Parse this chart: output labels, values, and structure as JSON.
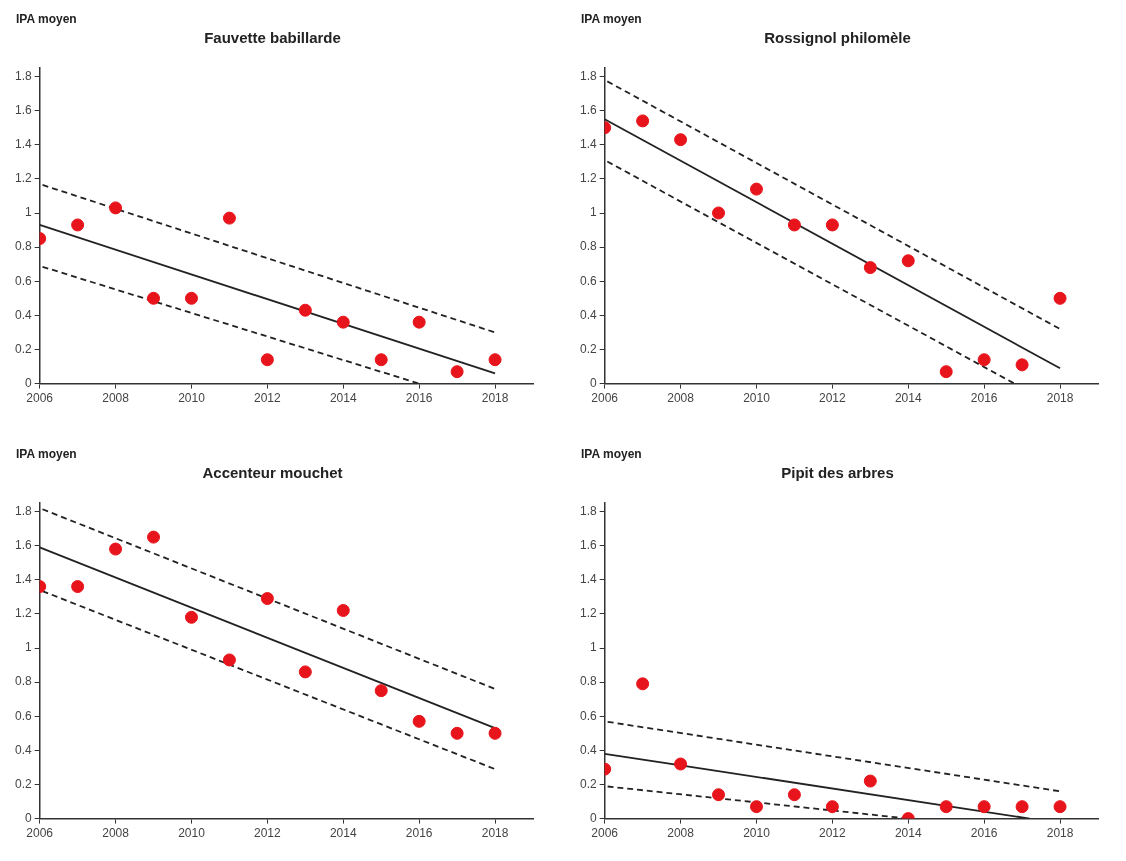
{
  "chart_data": [
    {
      "type": "scatter",
      "title": "Fauvette babillarde",
      "ylabel": "IPA moyen",
      "xlim": [
        2006,
        2019
      ],
      "ylim": [
        0,
        1.85
      ],
      "xticks": [
        2006,
        2008,
        2010,
        2012,
        2014,
        2016,
        2018
      ],
      "yticks": [
        0,
        0.2,
        0.4,
        0.6,
        0.8,
        1,
        1.2,
        1.4,
        1.6,
        1.8
      ],
      "grid": false,
      "legend": false,
      "series": [
        {
          "color": "#e8141b",
          "marker": "circle",
          "x": [
            2006,
            2007,
            2008,
            2009,
            2010,
            2011,
            2012,
            2013,
            2014,
            2015,
            2016,
            2017,
            2018
          ],
          "values": [
            0.85,
            0.93,
            1.03,
            0.5,
            0.5,
            0.97,
            0.14,
            0.43,
            0.36,
            0.14,
            0.36,
            0.07,
            0.14
          ]
        },
        {
          "type": "line",
          "color": "#222222",
          "line_style": "solid",
          "x": [
            2006,
            2018
          ],
          "values": [
            0.93,
            0.06
          ]
        },
        {
          "type": "line",
          "color": "#222222",
          "line_style": "dashed",
          "x": [
            2006,
            2018
          ],
          "values": [
            1.17,
            0.3
          ]
        },
        {
          "type": "line",
          "color": "#222222",
          "line_style": "dashed",
          "x": [
            2006,
            2016
          ],
          "values": [
            0.69,
            0
          ]
        }
      ]
    },
    {
      "type": "scatter",
      "title": "Rossignol philomèle",
      "ylabel": "IPA moyen",
      "xlim": [
        2006,
        2019
      ],
      "ylim": [
        0,
        1.85
      ],
      "xticks": [
        2006,
        2008,
        2010,
        2012,
        2014,
        2016,
        2018
      ],
      "yticks": [
        0,
        0.2,
        0.4,
        0.6,
        0.8,
        1,
        1.2,
        1.4,
        1.6,
        1.8
      ],
      "grid": false,
      "legend": false,
      "series": [
        {
          "color": "#e8141b",
          "marker": "circle",
          "x": [
            2006,
            2007,
            2008,
            2009,
            2010,
            2011,
            2012,
            2013,
            2014,
            2015,
            2016,
            2017,
            2018
          ],
          "values": [
            1.5,
            1.54,
            1.43,
            1.0,
            1.14,
            0.93,
            0.93,
            0.68,
            0.72,
            0.07,
            0.14,
            0.11,
            0.5
          ]
        },
        {
          "type": "line",
          "color": "#222222",
          "line_style": "solid",
          "x": [
            2006,
            2018
          ],
          "values": [
            1.55,
            0.09
          ]
        },
        {
          "type": "line",
          "color": "#222222",
          "line_style": "dashed",
          "x": [
            2006,
            2018
          ],
          "values": [
            1.78,
            0.32
          ]
        },
        {
          "type": "line",
          "color": "#222222",
          "line_style": "dashed",
          "x": [
            2006,
            2016.8
          ],
          "values": [
            1.31,
            0
          ]
        }
      ]
    },
    {
      "type": "scatter",
      "title": "Accenteur mouchet",
      "ylabel": "IPA moyen",
      "xlim": [
        2006,
        2019
      ],
      "ylim": [
        0,
        1.85
      ],
      "xticks": [
        2006,
        2008,
        2010,
        2012,
        2014,
        2016,
        2018
      ],
      "yticks": [
        0,
        0.2,
        0.4,
        0.6,
        0.8,
        1,
        1.2,
        1.4,
        1.6,
        1.8
      ],
      "grid": false,
      "legend": false,
      "series": [
        {
          "color": "#e8141b",
          "marker": "circle",
          "x": [
            2006,
            2007,
            2008,
            2009,
            2010,
            2011,
            2012,
            2013,
            2014,
            2015,
            2016,
            2017,
            2018
          ],
          "values": [
            1.36,
            1.36,
            1.58,
            1.65,
            1.18,
            0.93,
            1.29,
            0.86,
            1.22,
            0.75,
            0.57,
            0.5,
            0.5
          ]
        },
        {
          "type": "line",
          "color": "#222222",
          "line_style": "solid",
          "x": [
            2006,
            2018
          ],
          "values": [
            1.59,
            0.53
          ]
        },
        {
          "type": "line",
          "color": "#222222",
          "line_style": "dashed",
          "x": [
            2006,
            2018
          ],
          "values": [
            1.82,
            0.76
          ]
        },
        {
          "type": "line",
          "color": "#222222",
          "line_style": "dashed",
          "x": [
            2006,
            2018
          ],
          "values": [
            1.34,
            0.29
          ]
        }
      ]
    },
    {
      "type": "scatter",
      "title": "Pipit des arbres",
      "ylabel": "IPA moyen",
      "xlim": [
        2006,
        2019
      ],
      "ylim": [
        0,
        1.85
      ],
      "xticks": [
        2006,
        2008,
        2010,
        2012,
        2014,
        2016,
        2018
      ],
      "yticks": [
        0,
        0.2,
        0.4,
        0.6,
        0.8,
        1,
        1.2,
        1.4,
        1.6,
        1.8
      ],
      "grid": false,
      "legend": false,
      "series": [
        {
          "color": "#e8141b",
          "marker": "circle",
          "x": [
            2006,
            2007,
            2008,
            2009,
            2010,
            2011,
            2012,
            2013,
            2014,
            2015,
            2016,
            2017,
            2018
          ],
          "values": [
            0.29,
            0.79,
            0.32,
            0.14,
            0.07,
            0.14,
            0.07,
            0.22,
            0,
            0.07,
            0.07,
            0.07,
            0.07
          ]
        },
        {
          "type": "line",
          "color": "#222222",
          "line_style": "solid",
          "x": [
            2006,
            2017.2
          ],
          "values": [
            0.38,
            0
          ]
        },
        {
          "type": "line",
          "color": "#222222",
          "line_style": "dashed",
          "x": [
            2006,
            2018
          ],
          "values": [
            0.57,
            0.16
          ]
        },
        {
          "type": "line",
          "color": "#222222",
          "line_style": "dashed",
          "x": [
            2006,
            2014
          ],
          "values": [
            0.19,
            0
          ]
        }
      ]
    }
  ]
}
